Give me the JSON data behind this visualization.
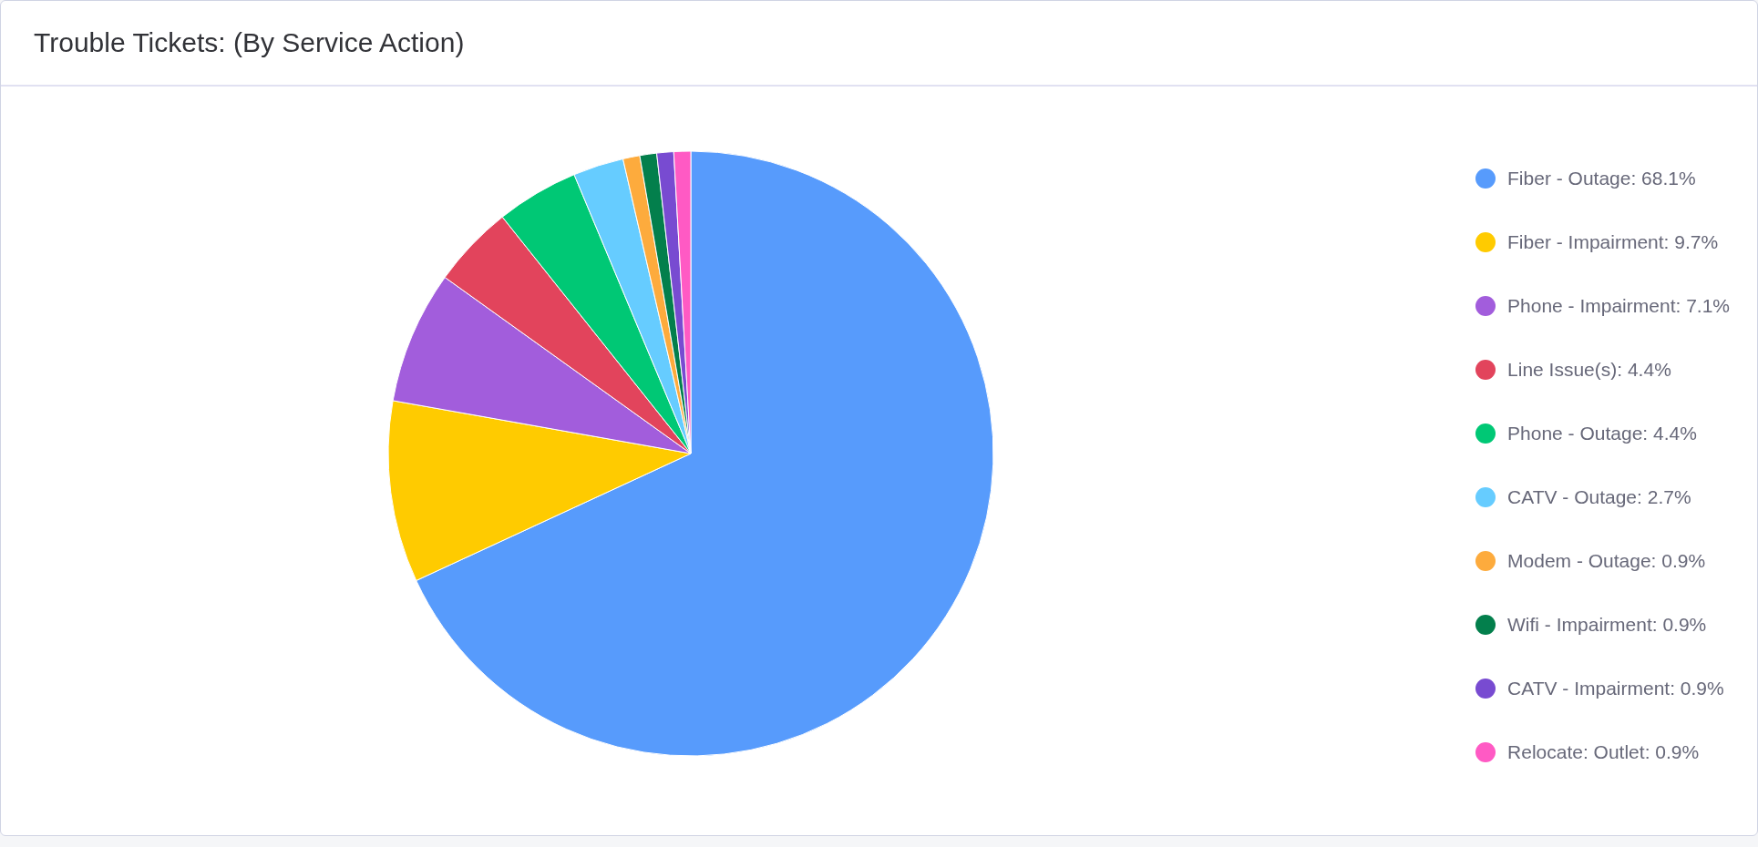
{
  "chart_data": {
    "type": "pie",
    "title": "Trouble Tickets: (By Service Action)",
    "categories": [
      "Fiber - Outage: 68.1%",
      "Fiber - Impairment: 9.7%",
      "Phone - Impairment: 7.1%",
      "Line Issue(s): 4.4%",
      "Phone - Outage: 4.4%",
      "CATV - Outage: 2.7%",
      "Modem - Outage: 0.9%",
      "Wifi - Impairment: 0.9%",
      "CATV - Impairment: 0.9%",
      "Relocate: Outlet: 0.9%"
    ],
    "values": [
      68.1,
      9.7,
      7.1,
      4.4,
      4.4,
      2.7,
      0.9,
      0.9,
      0.9,
      0.9
    ],
    "colors": [
      "#579bfc",
      "#ffcb00",
      "#a25ddc",
      "#e2445c",
      "#00c875",
      "#66ccff",
      "#fdab3d",
      "#037f4c",
      "#784bd1",
      "#ff5ac4"
    ],
    "legend": "right"
  }
}
